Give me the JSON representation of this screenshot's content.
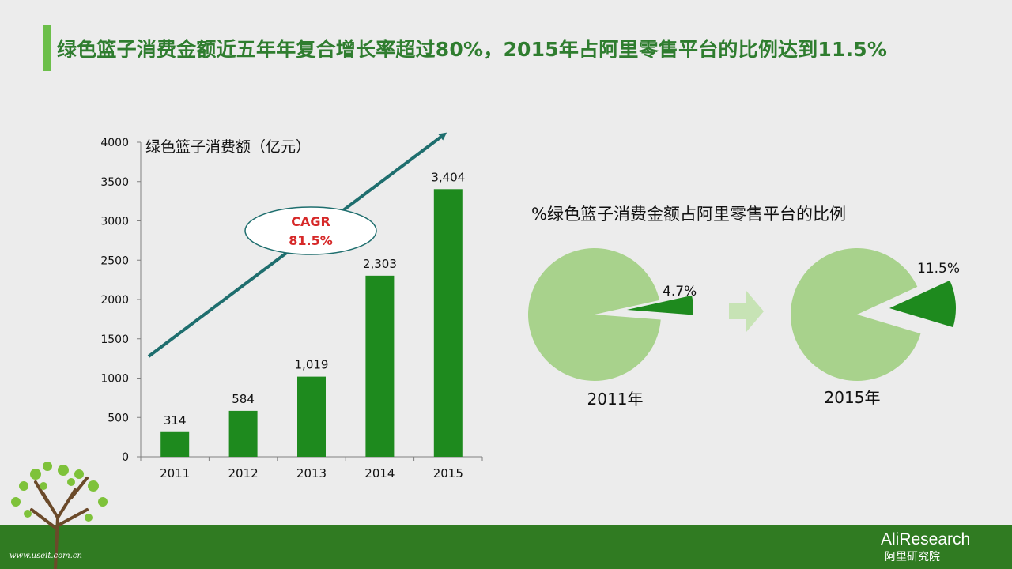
{
  "title": "绿色篮子消费金额近五年年复合增长率超过80%，2015年占阿里零售平台的比例达到11.5%",
  "colors": {
    "bar": "#1e8a1e",
    "trend_arrow": "#1e6e6e",
    "pie_main": "#a8d28c",
    "pie_slice": "#1e8a1e",
    "cagr_text": "#d62828",
    "title_text": "#2f7d2f",
    "band": "#307b22"
  },
  "chart_data": [
    {
      "type": "bar",
      "title": "绿色篮子消费额（亿元）",
      "categories": [
        "2011",
        "2012",
        "2013",
        "2014",
        "2015"
      ],
      "values": [
        314,
        584,
        1019,
        2303,
        3404
      ],
      "data_labels": [
        "314",
        "584",
        "1,019",
        "2,303",
        "3,404"
      ],
      "ylim": [
        0,
        4000
      ],
      "yticks": [
        "0",
        "500",
        "1000",
        "1500",
        "2000",
        "2500",
        "3000",
        "3500",
        "4000"
      ],
      "grid": false,
      "annotation": {
        "label": "CAGR",
        "value": "81.5%",
        "shape": "ellipse on rising trend arrow"
      }
    },
    {
      "type": "pie",
      "title": "%绿色篮子消费金额占阿里零售平台的比例",
      "pies": [
        {
          "label": "2011年",
          "share": 4.7,
          "share_label": "4.7%"
        },
        {
          "label": "2015年",
          "share": 11.5,
          "share_label": "11.5%"
        }
      ]
    }
  ],
  "footer": {
    "brand": "AliResearch",
    "brand_sub": "阿里研究院",
    "watermark": "www.useit.com.cn"
  }
}
